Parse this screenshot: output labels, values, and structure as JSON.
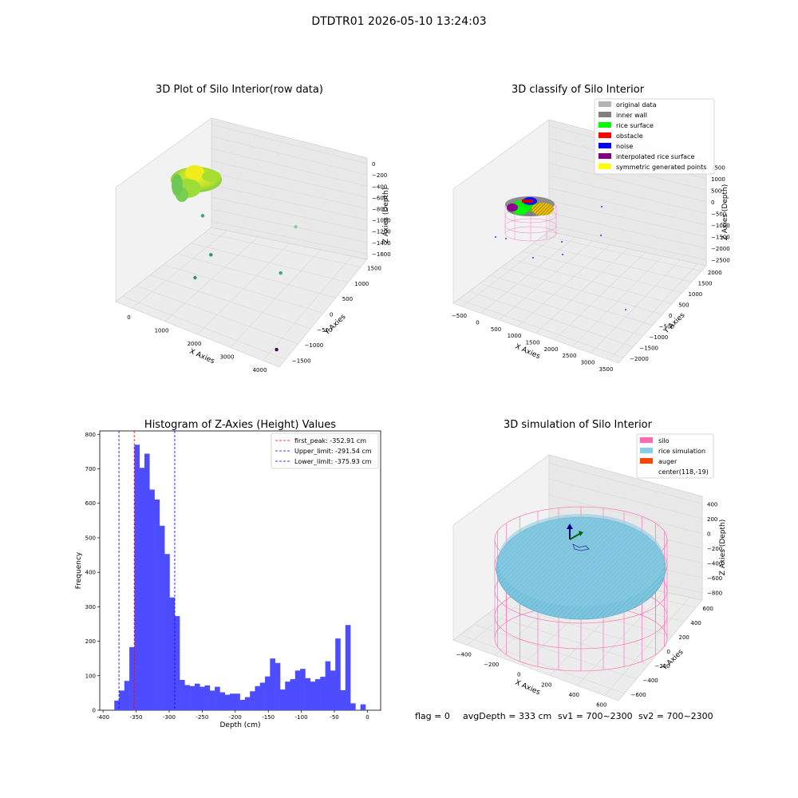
{
  "figure_title": "DTDTR01 2026-05-10 13:24:03",
  "footer": {
    "flag": "flag = 0",
    "avg": "avgDepth = 333 cm",
    "sv1": "sv1 = 700~2300",
    "sv2": "sv2 = 700~2300"
  },
  "chart_data": [
    {
      "type": "scatter",
      "title": "3D Plot of Silo Interior(row data)",
      "xlabel": "X Axies",
      "ylabel": "Y Axies",
      "zlabel": "Z Axies (Depth)",
      "x_ticks": [
        "0",
        "1000",
        "2000",
        "3000",
        "4000"
      ],
      "y_ticks": [
        "−1500",
        "−1000",
        "−500",
        "0",
        "500",
        "1000",
        "1500"
      ],
      "z_ticks": [
        "0",
        "−200",
        "−400",
        "−600",
        "−800",
        "−1000",
        "−1200",
        "−1400",
        "−1600"
      ],
      "points": [
        {
          "x": 200,
          "y": 0,
          "z": -400,
          "color": "#c8e020"
        },
        {
          "x": 300,
          "y": 100,
          "z": -350,
          "color": "#e8e41a"
        },
        {
          "x": 400,
          "y": -50,
          "z": -300,
          "color": "#9ad83a"
        },
        {
          "x": 600,
          "y": 200,
          "z": -800,
          "color": "#33a88a"
        },
        {
          "x": 1000,
          "y": -600,
          "z": -1400,
          "color": "#2a9080"
        },
        {
          "x": 1200,
          "y": -300,
          "z": -1100,
          "color": "#2a9080"
        },
        {
          "x": 2800,
          "y": 600,
          "z": -600,
          "color": "#80d3a0"
        },
        {
          "x": 3000,
          "y": -200,
          "z": -1000,
          "color": "#33a88a"
        },
        {
          "x": 3800,
          "y": -1400,
          "z": -1600,
          "color": "#44015a"
        }
      ]
    },
    {
      "type": "scatter",
      "title": "3D classify of Silo Interior",
      "xlabel": "X Axies",
      "ylabel": "Y Axies",
      "zlabel": "Z Axies (Depth)",
      "x_ticks": [
        "−500",
        "0",
        "500",
        "1000",
        "1500",
        "2000",
        "2500",
        "3000",
        "3500"
      ],
      "y_ticks": [
        "−2000",
        "−1500",
        "−1000",
        "−500",
        "0",
        "500",
        "1000",
        "1500",
        "2000"
      ],
      "z_ticks": [
        "1500",
        "1000",
        "500",
        "0",
        "−500",
        "−1000",
        "−1500",
        "−2000",
        "−2500"
      ],
      "legend": [
        {
          "label": "original data",
          "color": "#b4b4b4"
        },
        {
          "label": "inner wall",
          "color": "#808080"
        },
        {
          "label": "rice surface",
          "color": "#00ff00"
        },
        {
          "label": "obstacle",
          "color": "#ff0000"
        },
        {
          "label": "noise",
          "color": "#0000ff"
        },
        {
          "label": "interpolated rice surface",
          "color": "#800080"
        },
        {
          "label": "symmetric generated points",
          "color": "#ffff00"
        }
      ]
    },
    {
      "type": "bar",
      "title": "Histogram of Z-Axies (Height) Values",
      "xlabel": "Depth (cm)",
      "ylabel": "Frequency",
      "xlim": [
        -405,
        20
      ],
      "ylim": [
        0,
        810
      ],
      "x_ticks": [
        -400,
        -350,
        -300,
        -250,
        -200,
        -150,
        -100,
        -50,
        0
      ],
      "y_ticks": [
        0,
        100,
        200,
        300,
        400,
        500,
        600,
        700,
        800
      ],
      "bar_color": "#4d4dff",
      "bins_start": -383,
      "bin_width": 7.6,
      "values": [
        28,
        57,
        85,
        183,
        770,
        703,
        744,
        640,
        611,
        535,
        453,
        327,
        273,
        88,
        73,
        70,
        77,
        68,
        72,
        57,
        68,
        52,
        45,
        48,
        48,
        30,
        38,
        55,
        70,
        80,
        98,
        150,
        137,
        60,
        83,
        90,
        115,
        120,
        93,
        83,
        90,
        97,
        142,
        115,
        208,
        58,
        247,
        20,
        0,
        17
      ],
      "lines": [
        {
          "label": "first_peak: -352.91 cm",
          "x": -352.91,
          "color": "#ff0000"
        },
        {
          "label": "Upper_limit: -291.54 cm",
          "x": -291.54,
          "color": "#0000ff"
        },
        {
          "label": "Lower_limit: -375.93 cm",
          "x": -375.93,
          "color": "#0000ff"
        }
      ]
    },
    {
      "type": "scatter",
      "title": "3D simulation of Silo Interior",
      "xlabel": "X Axies",
      "ylabel": "Y Axies",
      "zlabel": "Z Axies (Depth)",
      "x_ticks": [
        "−400",
        "−200",
        "0",
        "200",
        "400",
        "600"
      ],
      "y_ticks": [
        "−600",
        "−400",
        "−200",
        "0",
        "200",
        "400",
        "600"
      ],
      "z_ticks": [
        "400",
        "200",
        "0",
        "−200",
        "−400",
        "−600",
        "−800"
      ],
      "legend": [
        {
          "label": "silo",
          "color": "#ff69b4"
        },
        {
          "label": "rice simulation",
          "color": "#87ceeb"
        },
        {
          "label": "auger",
          "color": "#ff4500"
        },
        {
          "label": "center(118,-19)",
          "color": ""
        }
      ]
    }
  ]
}
